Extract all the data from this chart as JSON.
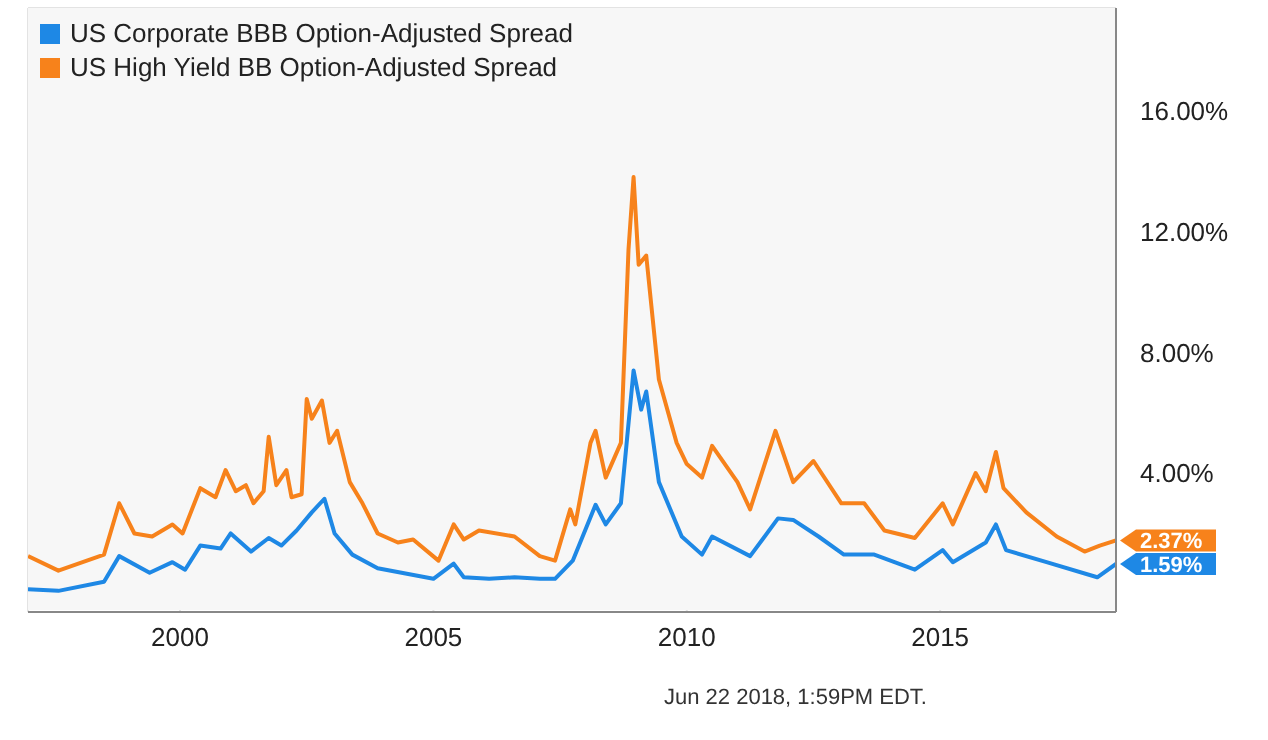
{
  "chart_data": {
    "type": "line",
    "series": [
      {
        "name": "US Corporate BBB Option-Adjusted Spread",
        "color": "#1e88e5",
        "x": [
          1997.0,
          1997.6,
          1998.5,
          1998.8,
          1999.4,
          1999.85,
          2000.1,
          2000.4,
          2000.8,
          2001.0,
          2001.4,
          2001.75,
          2002.0,
          2002.3,
          2002.6,
          2002.85,
          2003.05,
          2003.4,
          2003.9,
          2005.0,
          2005.4,
          2005.6,
          2006.1,
          2006.6,
          2007.1,
          2007.4,
          2007.75,
          2008.2,
          2008.4,
          2008.7,
          2008.95,
          2009.1,
          2009.2,
          2009.45,
          2009.9,
          2010.3,
          2010.5,
          2011.25,
          2011.8,
          2012.1,
          2012.6,
          2013.1,
          2013.7,
          2014.5,
          2015.05,
          2015.25,
          2015.9,
          2016.1,
          2016.3,
          2017.1,
          2018.1,
          2018.47
        ],
        "values": [
          0.75,
          0.7,
          1.0,
          1.85,
          1.3,
          1.65,
          1.4,
          2.2,
          2.1,
          2.6,
          2.0,
          2.45,
          2.2,
          2.7,
          3.3,
          3.75,
          2.6,
          1.9,
          1.45,
          1.1,
          1.6,
          1.15,
          1.1,
          1.15,
          1.1,
          1.1,
          1.7,
          3.55,
          2.9,
          3.6,
          8.0,
          6.7,
          7.3,
          4.3,
          2.5,
          1.9,
          2.5,
          1.85,
          3.1,
          3.05,
          2.5,
          1.9,
          1.9,
          1.4,
          2.05,
          1.65,
          2.3,
          2.9,
          2.05,
          1.65,
          1.15,
          1.59
        ]
      },
      {
        "name": "US High Yield BB Option-Adjusted Spread",
        "color": "#f7821b",
        "x": [
          1997.0,
          1997.6,
          1998.5,
          1998.8,
          1999.1,
          1999.45,
          1999.85,
          2000.05,
          2000.4,
          2000.7,
          2000.9,
          2001.1,
          2001.3,
          2001.45,
          2001.65,
          2001.75,
          2001.9,
          2002.1,
          2002.2,
          2002.4,
          2002.5,
          2002.6,
          2002.8,
          2002.95,
          2003.1,
          2003.35,
          2003.6,
          2003.9,
          2004.3,
          2004.6,
          2005.1,
          2005.4,
          2005.6,
          2005.9,
          2006.6,
          2007.1,
          2007.4,
          2007.7,
          2007.8,
          2008.1,
          2008.2,
          2008.4,
          2008.7,
          2008.85,
          2008.95,
          2009.05,
          2009.2,
          2009.45,
          2009.8,
          2010.0,
          2010.3,
          2010.5,
          2011.0,
          2011.25,
          2011.75,
          2012.1,
          2012.5,
          2013.05,
          2013.5,
          2013.9,
          2014.5,
          2015.05,
          2015.25,
          2015.7,
          2015.9,
          2016.1,
          2016.25,
          2016.7,
          2017.3,
          2017.85,
          2018.15,
          2018.47
        ],
        "values": [
          1.85,
          1.37,
          1.9,
          3.6,
          2.6,
          2.5,
          2.9,
          2.6,
          4.1,
          3.8,
          4.7,
          4.0,
          4.2,
          3.6,
          4.0,
          5.8,
          4.2,
          4.7,
          3.8,
          3.9,
          7.05,
          6.4,
          7.0,
          5.6,
          6.0,
          4.3,
          3.6,
          2.6,
          2.3,
          2.4,
          1.7,
          2.9,
          2.4,
          2.7,
          2.5,
          1.85,
          1.7,
          3.4,
          2.9,
          5.6,
          6.0,
          4.45,
          5.6,
          12.0,
          14.4,
          11.5,
          11.8,
          7.7,
          5.6,
          4.9,
          4.45,
          5.5,
          4.3,
          3.4,
          6.0,
          4.3,
          5.0,
          3.6,
          3.6,
          2.7,
          2.45,
          3.6,
          2.9,
          4.6,
          4.0,
          5.3,
          4.1,
          3.3,
          2.5,
          2.0,
          2.2,
          2.37
        ]
      }
    ],
    "xlim": [
      1997.0,
      2018.47
    ],
    "xticks": [
      2000,
      2005,
      2010,
      2015
    ],
    "ylim": [
      0,
      20
    ],
    "yticks": [
      {
        "value": 4,
        "label": "4.00%"
      },
      {
        "value": 8,
        "label": "8.00%"
      },
      {
        "value": 12,
        "label": "12.00%"
      },
      {
        "value": 16,
        "label": "16.00%"
      }
    ],
    "grid": true,
    "legend": "top left",
    "marker": "none",
    "line_style": "solid",
    "annotations": [
      {
        "text": "1.59%",
        "x": 2018.47,
        "y": 1.59
      },
      {
        "text": "2.37%",
        "x": 2018.47,
        "y": 2.37
      },
      "Jun 22 2018, 1:59PM EDT."
    ]
  }
}
